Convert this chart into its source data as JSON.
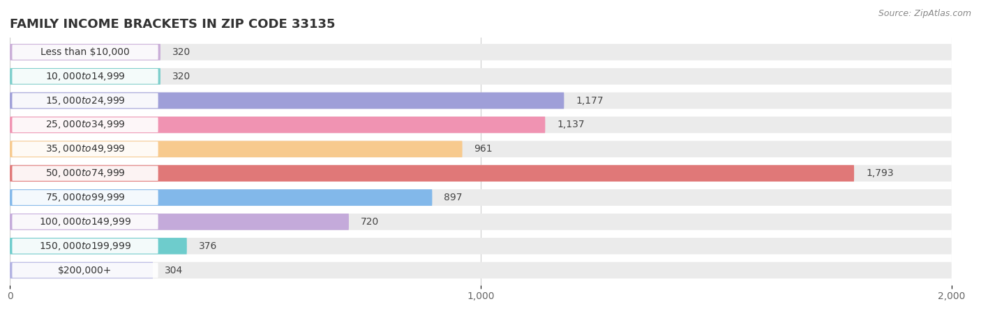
{
  "title": "FAMILY INCOME BRACKETS IN ZIP CODE 33135",
  "source_text": "Source: ZipAtlas.com",
  "categories": [
    "Less than $10,000",
    "$10,000 to $14,999",
    "$15,000 to $24,999",
    "$25,000 to $34,999",
    "$35,000 to $49,999",
    "$50,000 to $74,999",
    "$75,000 to $99,999",
    "$100,000 to $149,999",
    "$150,000 to $199,999",
    "$200,000+"
  ],
  "values": [
    320,
    320,
    1177,
    1137,
    961,
    1793,
    897,
    720,
    376,
    304
  ],
  "bar_colors": [
    "#caaed8",
    "#7ecfcc",
    "#9f9fd8",
    "#f093b2",
    "#f7ca8e",
    "#e07878",
    "#82b8ea",
    "#c4aada",
    "#6ecccc",
    "#b2b2e2"
  ],
  "xlim": [
    0,
    2000
  ],
  "xticks": [
    0,
    1000,
    2000
  ],
  "xtick_labels": [
    "0",
    "1,000",
    "2,000"
  ],
  "bg_color": "#ffffff",
  "bar_bg_color": "#ebebeb",
  "label_bg_color": "#ffffff",
  "title_fontsize": 13,
  "label_fontsize": 10,
  "value_fontsize": 10,
  "source_fontsize": 9
}
